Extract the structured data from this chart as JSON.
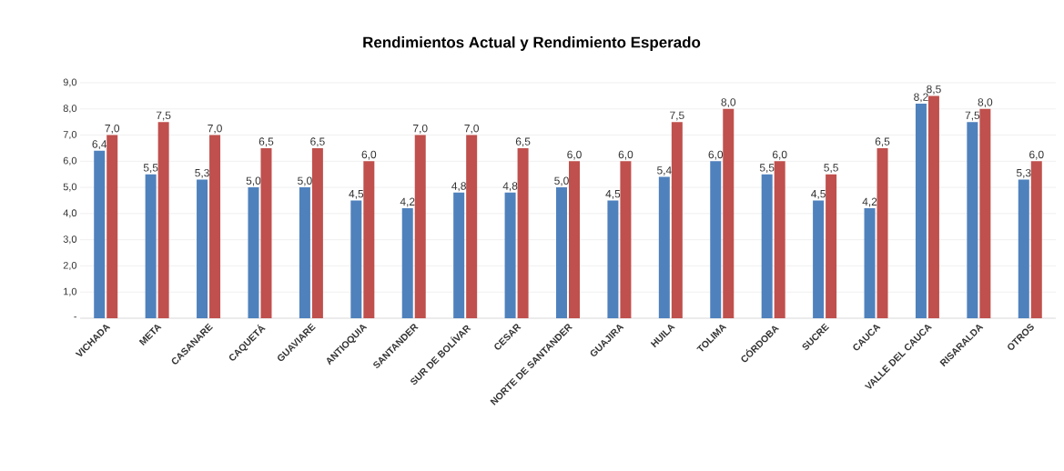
{
  "chart_data": {
    "type": "bar",
    "title": "Rendimientos Actual y Rendimiento Esperado",
    "categories": [
      "VICHADA",
      "META",
      "CASANARE",
      "CAQUETÁ",
      "GUAVIARE",
      "ANTIOQUIA",
      "SANTANDER",
      "SUR DE BOLÍVAR",
      "CESAR",
      "NORTE DE SANTANDER",
      "GUAJIRA",
      "HUILA",
      "TOLIMA",
      "CÓRDOBA",
      "SUCRE",
      "CAUCA",
      "VALLE DEL CAUCA",
      "RISARALDA",
      "OTROS"
    ],
    "series": [
      {
        "color": "#4f81bd",
        "values": [
          6.4,
          5.5,
          5.3,
          5.0,
          5.0,
          4.5,
          4.2,
          4.8,
          4.8,
          5.0,
          4.5,
          5.4,
          6.0,
          5.5,
          4.5,
          4.2,
          8.2,
          7.5,
          5.3
        ],
        "value_labels": [
          "6,4",
          "5,5",
          "5,3",
          "5,0",
          "5,0",
          "4,5",
          "4,2",
          "4,8",
          "4,8",
          "5,0",
          "4,5",
          "5,4",
          "6,0",
          "5,5",
          "4,5",
          "4,2",
          "8,2",
          "7,5",
          "5,3"
        ]
      },
      {
        "color": "#c0504d",
        "values": [
          7.0,
          7.5,
          7.0,
          6.5,
          6.5,
          6.0,
          7.0,
          7.0,
          6.5,
          6.0,
          6.0,
          7.5,
          8.0,
          6.0,
          5.5,
          6.5,
          8.5,
          8.0,
          6.0
        ],
        "value_labels": [
          "7,0",
          "7,5",
          "7,0",
          "6,5",
          "6,5",
          "6,0",
          "7,0",
          "7,0",
          "6,5",
          "6,0",
          "6,0",
          "7,5",
          "8,0",
          "6,0",
          "5,5",
          "6,5",
          "8,5",
          "8,0",
          "6,0"
        ]
      }
    ],
    "ylim": [
      0,
      9
    ],
    "yticks": [
      {
        "value": 0,
        "label": "-"
      },
      {
        "value": 1,
        "label": "1,0"
      },
      {
        "value": 2,
        "label": "2,0"
      },
      {
        "value": 3,
        "label": "3,0"
      },
      {
        "value": 4,
        "label": "4,0"
      },
      {
        "value": 5,
        "label": "5,0"
      },
      {
        "value": 6,
        "label": "6,0"
      },
      {
        "value": 7,
        "label": "7,0"
      },
      {
        "value": 8,
        "label": "8,0"
      },
      {
        "value": 9,
        "label": "9,0"
      }
    ],
    "grid": "y"
  }
}
